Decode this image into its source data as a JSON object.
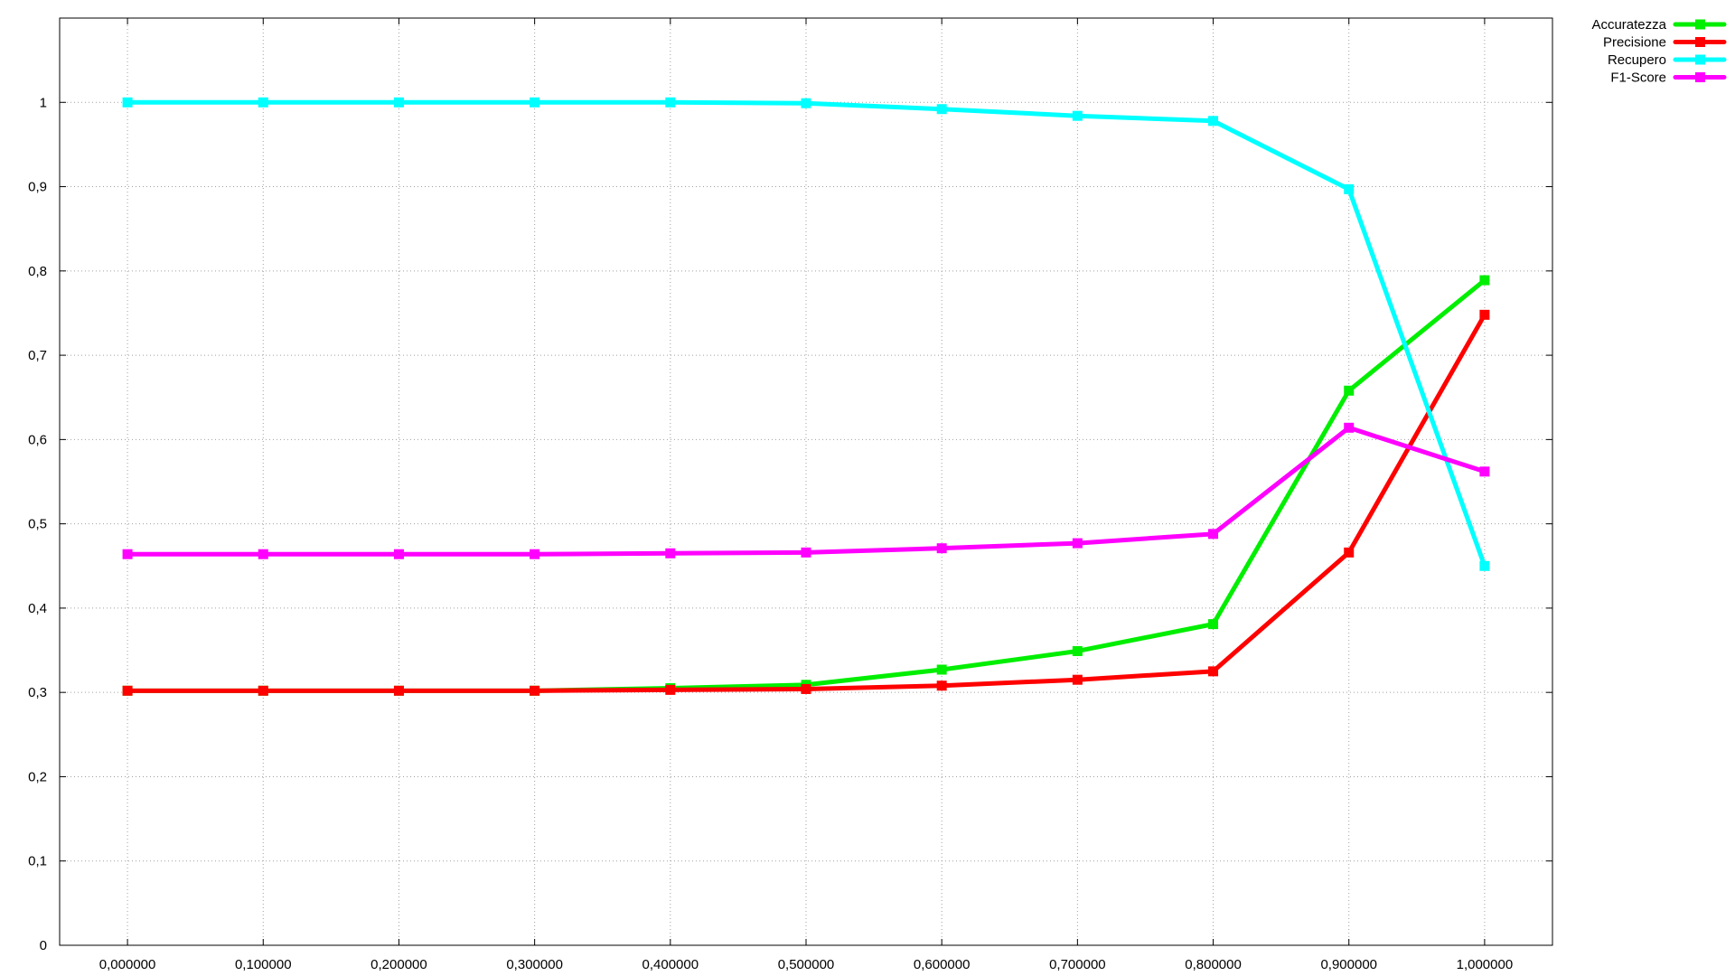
{
  "chart_data": {
    "type": "line",
    "title": "",
    "xlabel": "",
    "ylabel": "",
    "x": [
      0.0,
      0.1,
      0.2,
      0.3,
      0.4,
      0.5,
      0.6,
      0.7,
      0.8,
      0.9,
      1.0
    ],
    "x_tick_labels": [
      "0,000000",
      "0,100000",
      "0,200000",
      "0,300000",
      "0,400000",
      "0,500000",
      "0,600000",
      "0,700000",
      "0,800000",
      "0,900000",
      "1,000000"
    ],
    "y_ticks": [
      0,
      0.1,
      0.2,
      0.3,
      0.4,
      0.5,
      0.6,
      0.7,
      0.8,
      0.9,
      1
    ],
    "y_tick_labels": [
      "0",
      "0,1",
      "0,2",
      "0,3",
      "0,4",
      "0,5",
      "0,6",
      "0,7",
      "0,8",
      "0,9",
      "1"
    ],
    "xlim": [
      -0.05,
      1.05
    ],
    "ylim": [
      0,
      1.1
    ],
    "grid": true,
    "legend_position": "top-right",
    "series": [
      {
        "name": "Accuratezza",
        "color": "#00ee00",
        "values": [
          0.302,
          0.302,
          0.302,
          0.302,
          0.305,
          0.309,
          0.327,
          0.349,
          0.381,
          0.658,
          0.789
        ]
      },
      {
        "name": "Precisione",
        "color": "#ff0000",
        "values": [
          0.302,
          0.302,
          0.302,
          0.302,
          0.303,
          0.304,
          0.308,
          0.315,
          0.325,
          0.466,
          0.748
        ]
      },
      {
        "name": "Recupero",
        "color": "#00ffff",
        "values": [
          1.0,
          1.0,
          1.0,
          1.0,
          1.0,
          0.999,
          0.992,
          0.984,
          0.978,
          0.897,
          0.45
        ]
      },
      {
        "name": "F1-Score",
        "color": "#ff00ff",
        "values": [
          0.464,
          0.464,
          0.464,
          0.464,
          0.465,
          0.466,
          0.471,
          0.477,
          0.488,
          0.614,
          0.562
        ]
      }
    ]
  }
}
